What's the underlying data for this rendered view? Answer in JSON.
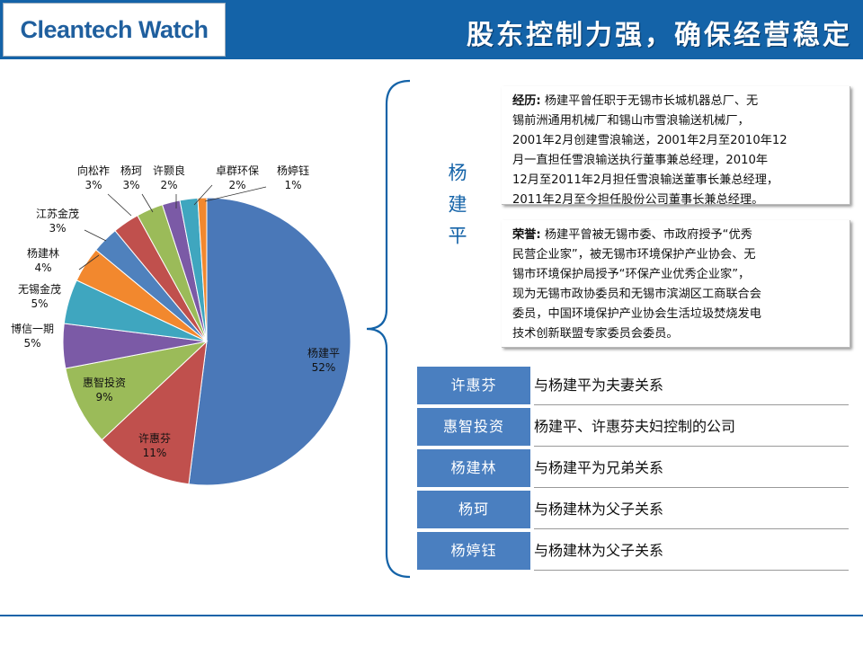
{
  "header": {
    "logo": "Cleantech Watch",
    "title": "股东控制力强，确保经营稳定"
  },
  "person": {
    "name": "杨建平"
  },
  "experience": {
    "label": "经历:",
    "lines": [
      "杨建平曾任职于无锡市长城机器总厂、无",
      "锡前洲通用机械厂和锡山市雪浪输送机械厂，",
      "2001年2月创建雪浪输送，2001年2月至2010年12",
      "月一直担任雪浪输送执行董事兼总经理，2010年",
      "12月至2011年2月担任雪浪输送董事长兼总经理，",
      "2011年2月至今担任股份公司董事长兼总经理。"
    ]
  },
  "honors": {
    "label": "荣誉:",
    "lines": [
      "杨建平曾被无锡市委、市政府授予“优秀",
      "民营企业家”，被无锡市环境保护产业协会、无",
      "锡市环境保护局授予“环保产业优秀企业家”，",
      "现为无锡市政协委员和无锡市滨湖区工商联合会",
      "委员，中国环境保护产业协会生活垃圾焚烧发电",
      "技术创新联盟专家委员会委员。"
    ]
  },
  "relations": [
    {
      "name": "许惠芬",
      "text": "与杨建平为夫妻关系"
    },
    {
      "name": "惠智投资",
      "text": "杨建平、许惠芬夫妇控制的公司"
    },
    {
      "name": "杨建林",
      "text": "与杨建平为兄弟关系"
    },
    {
      "name": "杨珂",
      "text": "与杨建林为父子关系"
    },
    {
      "name": "杨婷钰",
      "text": "与杨建林为父子关系"
    }
  ],
  "chart_data": {
    "type": "pie",
    "slices": [
      {
        "name": "杨建平",
        "value": 52,
        "label": "52%",
        "color": "#4a78b8"
      },
      {
        "name": "许惠芬",
        "value": 11,
        "label": "11%",
        "color": "#c0504d"
      },
      {
        "name": "惠智投资",
        "value": 9,
        "label": "9%",
        "color": "#9bbb59"
      },
      {
        "name": "博信一期",
        "value": 5,
        "label": "5%",
        "color": "#7b5aa6"
      },
      {
        "name": "无锡金茂",
        "value": 5,
        "label": "5%",
        "color": "#3fa6bf"
      },
      {
        "name": "杨建林",
        "value": 4,
        "label": "4%",
        "color": "#f2882e"
      },
      {
        "name": "江苏金茂",
        "value": 3,
        "label": "3%",
        "color": "#4f81bd"
      },
      {
        "name": "向松祚",
        "value": 3,
        "label": "3%",
        "color": "#c0504d"
      },
      {
        "name": "杨珂",
        "value": 3,
        "label": "3%",
        "color": "#9bbb59"
      },
      {
        "name": "许颢良",
        "value": 2,
        "label": "2%",
        "color": "#7b5aa6"
      },
      {
        "name": "卓群环保",
        "value": 2,
        "label": "2%",
        "color": "#3fa6bf"
      },
      {
        "name": "杨婷钰",
        "value": 1,
        "label": "1%",
        "color": "#f2882e"
      }
    ]
  }
}
